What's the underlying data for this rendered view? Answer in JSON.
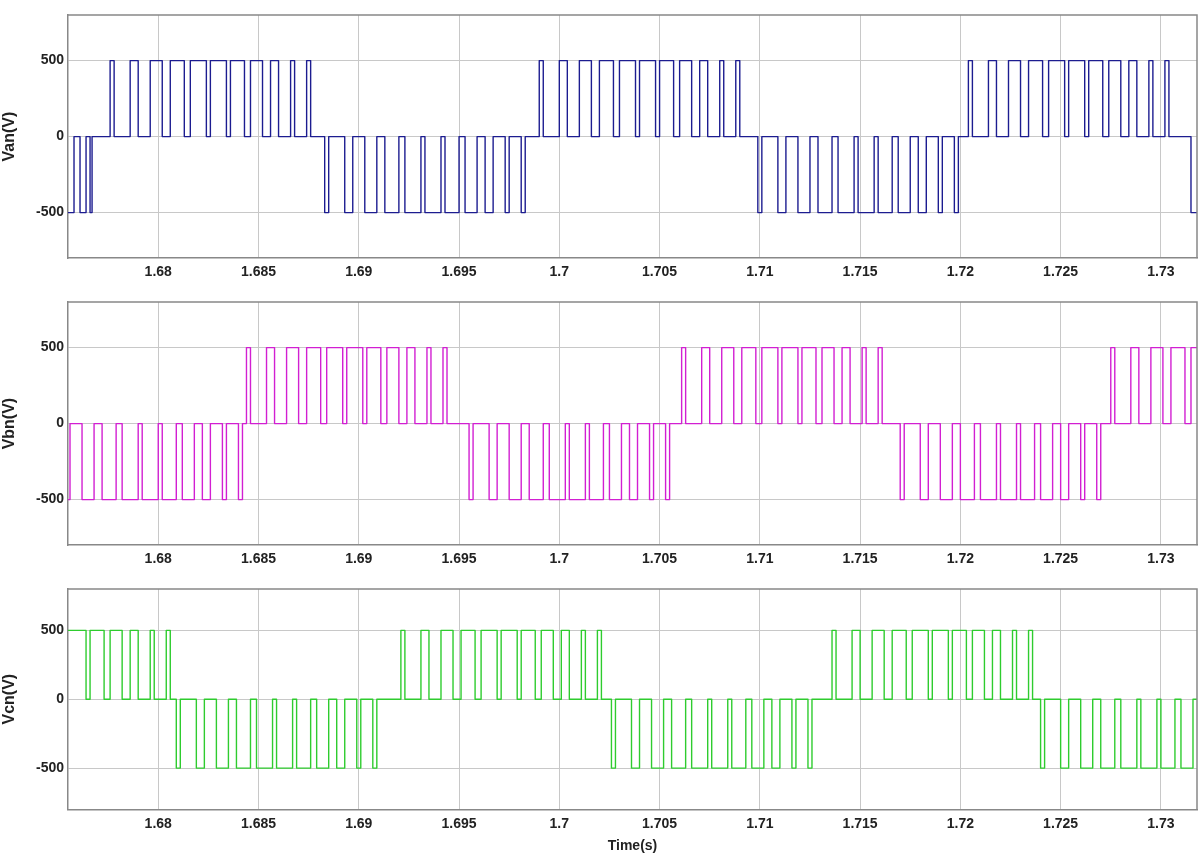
{
  "chart_data": [
    {
      "type": "step",
      "ylabel": "Van(V)",
      "xlim": [
        1.6755,
        1.7318
      ],
      "xticks": [
        1.68,
        1.685,
        1.69,
        1.695,
        1.7,
        1.705,
        1.71,
        1.715,
        1.72,
        1.725,
        1.73
      ],
      "ylim": [
        -800,
        800
      ],
      "yticks": [
        -500,
        0,
        500
      ],
      "grid": true,
      "color": "#1c1c90",
      "x": [
        1.6755,
        1.6758,
        1.6761,
        1.6764,
        1.6766,
        1.6767,
        1.6776,
        1.6778,
        1.6786,
        1.679,
        1.6796,
        1.6802,
        1.6806,
        1.6813,
        1.6816,
        1.6824,
        1.6826,
        1.6834,
        1.6836,
        1.6843,
        1.6846,
        1.6852,
        1.6856,
        1.686,
        1.6866,
        1.6868,
        1.6874,
        1.6876,
        1.6883,
        1.6885,
        1.6893,
        1.6897,
        1.6903,
        1.6909,
        1.6913,
        1.692,
        1.6923,
        1.6931,
        1.6933,
        1.6941,
        1.6943,
        1.695,
        1.6953,
        1.6959,
        1.6963,
        1.6967,
        1.6973,
        1.6975,
        1.6981,
        1.6983,
        1.699,
        1.6992,
        1.7,
        1.7004,
        1.701,
        1.7016,
        1.702,
        1.7027,
        1.703,
        1.7038,
        1.704,
        1.7048,
        1.705,
        1.7057,
        1.706,
        1.7066,
        1.707,
        1.7074,
        1.708,
        1.7082,
        1.7088,
        1.709,
        1.7099,
        1.7101,
        1.7109,
        1.7113,
        1.7119,
        1.7125,
        1.7129,
        1.7136,
        1.7139,
        1.7147,
        1.7149,
        1.7157,
        1.7159,
        1.7166,
        1.7169,
        1.7175,
        1.7179,
        1.7183,
        1.7189,
        1.7191,
        1.7197,
        1.7199,
        1.7204,
        1.7206,
        1.7214,
        1.7218,
        1.7224,
        1.723,
        1.7234,
        1.7241,
        1.7244,
        1.7252,
        1.7254,
        1.7262,
        1.7264,
        1.7271,
        1.7274,
        1.728,
        1.7284,
        1.7288,
        1.7294,
        1.7296,
        1.7302,
        1.7304,
        1.7315,
        1.7318
      ],
      "values": [
        -500,
        0,
        -500,
        0,
        -500,
        0,
        500,
        0,
        500,
        0,
        500,
        0,
        500,
        0,
        500,
        0,
        500,
        0,
        500,
        0,
        500,
        0,
        500,
        0,
        500,
        0,
        500,
        0,
        -500,
        0,
        -500,
        0,
        -500,
        0,
        -500,
        0,
        -500,
        0,
        -500,
        0,
        -500,
        0,
        -500,
        0,
        -500,
        0,
        -500,
        0,
        -500,
        0,
        500,
        0,
        500,
        0,
        500,
        0,
        500,
        0,
        500,
        0,
        500,
        0,
        500,
        0,
        500,
        0,
        500,
        0,
        500,
        0,
        500,
        0,
        -500,
        0,
        -500,
        0,
        -500,
        0,
        -500,
        0,
        -500,
        0,
        -500,
        0,
        -500,
        0,
        -500,
        0,
        -500,
        0,
        -500,
        0,
        -500,
        0,
        500,
        0,
        500,
        0,
        500,
        0,
        500,
        0,
        500,
        0,
        500,
        0,
        500,
        0,
        500,
        0,
        500,
        0,
        500,
        0,
        500,
        0,
        -500,
        -500
      ]
    },
    {
      "type": "step",
      "ylabel": "Vbn(V)",
      "xlim": [
        1.6755,
        1.7318
      ],
      "xticks": [
        1.68,
        1.685,
        1.69,
        1.695,
        1.7,
        1.705,
        1.71,
        1.715,
        1.72,
        1.725,
        1.73
      ],
      "ylim": [
        -800,
        800
      ],
      "yticks": [
        -500,
        0,
        500
      ],
      "grid": true,
      "color": "#d21fd2",
      "x": [
        1.6755,
        1.6756,
        1.6762,
        1.6768,
        1.6772,
        1.6779,
        1.6782,
        1.679,
        1.6792,
        1.68,
        1.6802,
        1.6809,
        1.6812,
        1.6818,
        1.6822,
        1.6826,
        1.6832,
        1.6834,
        1.684,
        1.6842,
        1.6844,
        1.6846,
        1.6854,
        1.6858,
        1.6864,
        1.687,
        1.6874,
        1.6881,
        1.6884,
        1.6892,
        1.6894,
        1.6902,
        1.6904,
        1.6911,
        1.6914,
        1.692,
        1.6924,
        1.6928,
        1.6934,
        1.6936,
        1.6942,
        1.6944,
        1.6955,
        1.6957,
        1.6965,
        1.6969,
        1.6975,
        1.6981,
        1.6985,
        1.6992,
        1.6995,
        1.7003,
        1.7005,
        1.7013,
        1.7015,
        1.7022,
        1.7025,
        1.7031,
        1.7035,
        1.7039,
        1.7045,
        1.7047,
        1.7053,
        1.7055,
        1.7061,
        1.7063,
        1.7071,
        1.7075,
        1.7081,
        1.7087,
        1.7091,
        1.7098,
        1.7101,
        1.7109,
        1.7111,
        1.7119,
        1.7121,
        1.7128,
        1.7131,
        1.7137,
        1.7141,
        1.7145,
        1.7151,
        1.7153,
        1.7159,
        1.7161,
        1.717,
        1.7172,
        1.718,
        1.7184,
        1.719,
        1.7196,
        1.72,
        1.7207,
        1.721,
        1.7218,
        1.722,
        1.7228,
        1.723,
        1.7237,
        1.724,
        1.7246,
        1.725,
        1.7254,
        1.726,
        1.7262,
        1.7268,
        1.727,
        1.7275,
        1.7277,
        1.7285,
        1.7289,
        1.7295,
        1.7301,
        1.7305,
        1.7312,
        1.7315,
        1.7318
      ],
      "values": [
        -500,
        0,
        -500,
        0,
        -500,
        0,
        -500,
        0,
        -500,
        0,
        -500,
        0,
        -500,
        0,
        -500,
        0,
        -500,
        0,
        -500,
        0,
        500,
        0,
        500,
        0,
        500,
        0,
        500,
        0,
        500,
        0,
        500,
        0,
        500,
        0,
        500,
        0,
        500,
        0,
        500,
        0,
        500,
        0,
        -500,
        0,
        -500,
        0,
        -500,
        0,
        -500,
        0,
        -500,
        0,
        -500,
        0,
        -500,
        0,
        -500,
        0,
        -500,
        0,
        -500,
        0,
        -500,
        0,
        500,
        0,
        500,
        0,
        500,
        0,
        500,
        0,
        500,
        0,
        500,
        0,
        500,
        0,
        500,
        0,
        500,
        0,
        500,
        0,
        500,
        0,
        -500,
        0,
        -500,
        0,
        -500,
        0,
        -500,
        0,
        -500,
        0,
        -500,
        0,
        -500,
        0,
        -500,
        0,
        -500,
        0,
        -500,
        0,
        -500,
        0,
        500,
        0,
        500,
        0,
        500,
        0,
        500,
        0,
        500,
        500
      ]
    },
    {
      "type": "step",
      "ylabel": "Vcn(V)",
      "xlabel": "Time(s)",
      "xlim": [
        1.6755,
        1.7318
      ],
      "xticks": [
        1.68,
        1.685,
        1.69,
        1.695,
        1.7,
        1.705,
        1.71,
        1.715,
        1.72,
        1.725,
        1.73
      ],
      "ylim": [
        -800,
        800
      ],
      "yticks": [
        -500,
        0,
        500
      ],
      "grid": true,
      "color": "#2ecc2e",
      "x": [
        1.6755,
        1.6764,
        1.6766,
        1.6773,
        1.6776,
        1.6782,
        1.6786,
        1.679,
        1.6796,
        1.6798,
        1.6804,
        1.6806,
        1.6809,
        1.6811,
        1.6819,
        1.6823,
        1.6829,
        1.6835,
        1.6839,
        1.6846,
        1.6849,
        1.6857,
        1.6859,
        1.6867,
        1.6869,
        1.6876,
        1.6879,
        1.6885,
        1.6889,
        1.6893,
        1.6899,
        1.6901,
        1.6907,
        1.6909,
        1.6921,
        1.6923,
        1.6931,
        1.6935,
        1.6941,
        1.6947,
        1.6951,
        1.6958,
        1.6961,
        1.6969,
        1.6971,
        1.6979,
        1.6981,
        1.6988,
        1.6991,
        1.6997,
        1.7001,
        1.7005,
        1.7011,
        1.7013,
        1.7019,
        1.7021,
        1.7026,
        1.7028,
        1.7036,
        1.704,
        1.7046,
        1.7052,
        1.7056,
        1.7063,
        1.7066,
        1.7074,
        1.7076,
        1.7084,
        1.7086,
        1.7093,
        1.7096,
        1.7102,
        1.7106,
        1.711,
        1.7116,
        1.7118,
        1.7124,
        1.7126,
        1.7136,
        1.7138,
        1.7146,
        1.715,
        1.7156,
        1.7162,
        1.7166,
        1.7173,
        1.7176,
        1.7184,
        1.7186,
        1.7194,
        1.7196,
        1.7203,
        1.7206,
        1.7212,
        1.7216,
        1.722,
        1.7226,
        1.7228,
        1.7234,
        1.7236,
        1.724,
        1.7242,
        1.725,
        1.7254,
        1.726,
        1.7266,
        1.727,
        1.7277,
        1.728,
        1.7288,
        1.729,
        1.7298,
        1.73,
        1.7307,
        1.731,
        1.7316,
        1.7318
      ],
      "values": [
        500,
        0,
        500,
        0,
        500,
        0,
        500,
        0,
        500,
        0,
        500,
        0,
        -500,
        0,
        -500,
        0,
        -500,
        0,
        -500,
        0,
        -500,
        0,
        -500,
        0,
        -500,
        0,
        -500,
        0,
        -500,
        0,
        -500,
        0,
        -500,
        0,
        500,
        0,
        500,
        0,
        500,
        0,
        500,
        0,
        500,
        0,
        500,
        0,
        500,
        0,
        500,
        0,
        500,
        0,
        500,
        0,
        500,
        0,
        -500,
        0,
        -500,
        0,
        -500,
        0,
        -500,
        0,
        -500,
        0,
        -500,
        0,
        -500,
        0,
        -500,
        0,
        -500,
        0,
        -500,
        0,
        -500,
        0,
        500,
        0,
        500,
        0,
        500,
        0,
        500,
        0,
        500,
        0,
        500,
        0,
        500,
        0,
        500,
        0,
        500,
        0,
        500,
        0,
        500,
        0,
        -500,
        0,
        -500,
        0,
        -500,
        0,
        -500,
        0,
        -500,
        0,
        -500,
        0,
        -500,
        0,
        -500,
        0,
        0
      ]
    }
  ]
}
